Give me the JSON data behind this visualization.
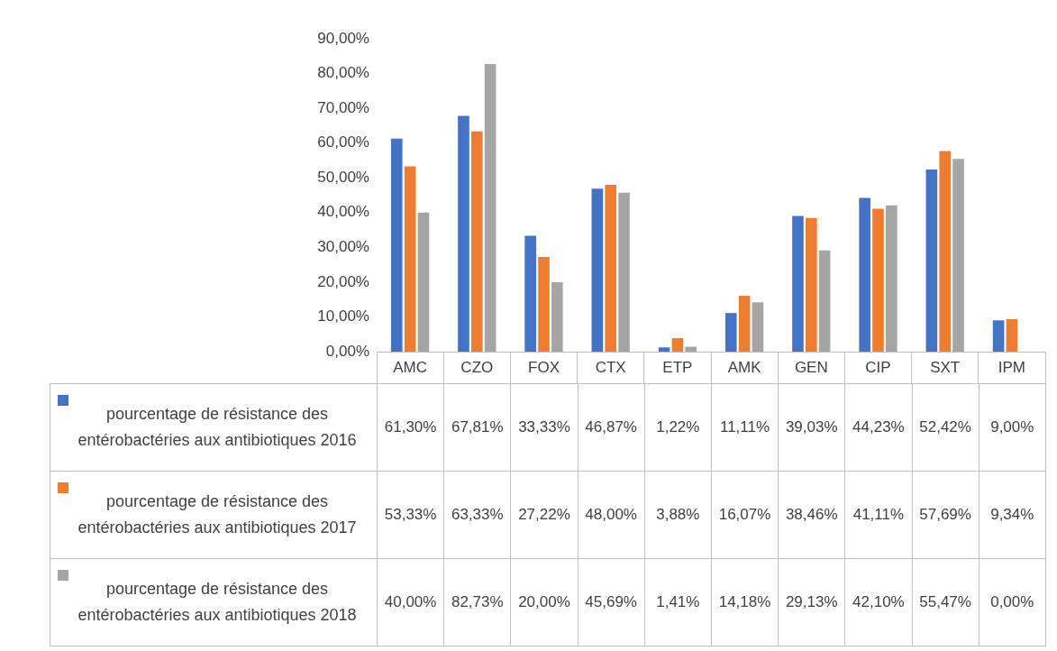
{
  "chart_data": {
    "type": "bar",
    "categories": [
      "AMC",
      "CZO",
      "FOX",
      "CTX",
      "ETP",
      "AMK",
      "GEN",
      "CIP",
      "SXT",
      "IPM"
    ],
    "series": [
      {
        "name": "pourcentage de résistance des entérobactéries aux antibiotiques 2016",
        "color": "#4472c4",
        "values": [
          61.3,
          67.81,
          33.33,
          46.87,
          1.22,
          11.11,
          39.03,
          44.23,
          52.42,
          9.0
        ],
        "value_labels": [
          "61,30%",
          "67,81%",
          "33,33%",
          "46,87%",
          "1,22%",
          "11,11%",
          "39,03%",
          "44,23%",
          "52,42%",
          "9,00%"
        ]
      },
      {
        "name": "pourcentage de résistance des entérobactéries aux antibiotiques 2017",
        "color": "#ed7d31",
        "values": [
          53.33,
          63.33,
          27.22,
          48.0,
          3.88,
          16.07,
          38.46,
          41.11,
          57.69,
          9.34
        ],
        "value_labels": [
          "53,33%",
          "63,33%",
          "27,22%",
          "48,00%",
          "3,88%",
          "16,07%",
          "38,46%",
          "41,11%",
          "57,69%",
          "9,34%"
        ]
      },
      {
        "name": "pourcentage de résistance des entérobactéries aux antibiotiques 2018",
        "color": "#a5a5a5",
        "values": [
          40.0,
          82.73,
          20.0,
          45.69,
          1.41,
          14.18,
          29.13,
          42.1,
          55.47,
          0.0
        ],
        "value_labels": [
          "40,00%",
          "82,73%",
          "20,00%",
          "45,69%",
          "1,41%",
          "14,18%",
          "29,13%",
          "42,10%",
          "55,47%",
          "0,00%"
        ]
      }
    ],
    "ylim": [
      0,
      90
    ],
    "yticks": [
      {
        "value": 0,
        "label": "0,00%"
      },
      {
        "value": 10,
        "label": "10,00%"
      },
      {
        "value": 20,
        "label": "20,00%"
      },
      {
        "value": 30,
        "label": "30,00%"
      },
      {
        "value": 40,
        "label": "40,00%"
      },
      {
        "value": 50,
        "label": "50,00%"
      },
      {
        "value": 60,
        "label": "60,00%"
      },
      {
        "value": 70,
        "label": "70,00%"
      },
      {
        "value": 80,
        "label": "80,00%"
      },
      {
        "value": 90,
        "label": "90,00%"
      }
    ],
    "grid": false,
    "legend": "bottom"
  }
}
